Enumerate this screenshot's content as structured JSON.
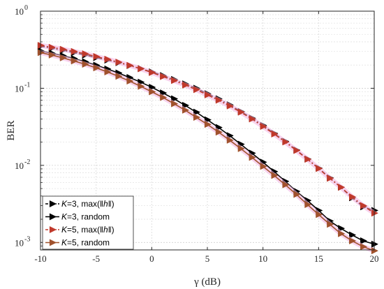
{
  "chart_data": {
    "type": "line",
    "xlabel": "γ (dB)",
    "ylabel": "BER",
    "xlim": [
      -10,
      20
    ],
    "ylim": [
      0.0008,
      1
    ],
    "yscale": "log",
    "grid": true,
    "legend_position": "bottom-left",
    "x_ticks": [
      "-10",
      "-5",
      "0",
      "5",
      "10",
      "15",
      "20"
    ],
    "y_ticks": [
      {
        "value": 1,
        "base": "10",
        "exp": "0"
      },
      {
        "value": 0.1,
        "base": "10",
        "exp": "-1"
      },
      {
        "value": 0.01,
        "base": "10",
        "exp": "-2"
      },
      {
        "value": 0.001,
        "base": "10",
        "exp": "-3"
      }
    ],
    "x": [
      -10,
      -9,
      -8,
      -7,
      -6,
      -5,
      -4,
      -3,
      -2,
      -1,
      0,
      1,
      2,
      3,
      4,
      5,
      6,
      7,
      8,
      9,
      10,
      11,
      12,
      13,
      14,
      15,
      16,
      17,
      18,
      19,
      20
    ],
    "series": [
      {
        "legend_italic": "K",
        "legend_text": "=3, max(‖",
        "legend_italic2": "h",
        "legend_text2": "‖)",
        "color": "#000000",
        "dash": "6,3,2,3",
        "values": [
          0.35,
          0.33,
          0.31,
          0.29,
          0.27,
          0.25,
          0.232,
          0.215,
          0.197,
          0.18,
          0.163,
          0.146,
          0.13,
          0.114,
          0.1,
          0.085,
          0.073,
          0.061,
          0.05,
          0.041,
          0.033,
          0.026,
          0.0205,
          0.0158,
          0.0121,
          0.0092,
          0.0069,
          0.0052,
          0.0038,
          0.0029,
          0.0026
        ]
      },
      {
        "legend_italic": "K",
        "legend_text": "=3, random",
        "color": "#000000",
        "dash": "",
        "values": [
          0.305,
          0.285,
          0.265,
          0.243,
          0.221,
          0.199,
          0.178,
          0.158,
          0.138,
          0.12,
          0.103,
          0.087,
          0.073,
          0.06,
          0.049,
          0.039,
          0.031,
          0.0243,
          0.0188,
          0.0144,
          0.011,
          0.0083,
          0.0062,
          0.0046,
          0.0035,
          0.0026,
          0.0019,
          0.00152,
          0.00125,
          0.00105,
          0.00095
        ]
      },
      {
        "legend_italic": "K",
        "legend_text": "=5, max(‖",
        "legend_italic2": "h",
        "legend_text2": "‖)",
        "color": "#c0392b",
        "dash": "6,3,2,3",
        "values": [
          0.36,
          0.34,
          0.32,
          0.3,
          0.28,
          0.258,
          0.238,
          0.218,
          0.198,
          0.179,
          0.16,
          0.142,
          0.126,
          0.11,
          0.096,
          0.082,
          0.07,
          0.059,
          0.049,
          0.04,
          0.032,
          0.0255,
          0.0201,
          0.0156,
          0.012,
          0.0091,
          0.0068,
          0.0052,
          0.0039,
          0.003,
          0.0024
        ]
      },
      {
        "legend_italic": "K",
        "legend_text": "=5, random",
        "color": "#a0522d",
        "dash": "",
        "values": [
          0.29,
          0.27,
          0.248,
          0.226,
          0.205,
          0.184,
          0.163,
          0.143,
          0.124,
          0.106,
          0.09,
          0.076,
          0.063,
          0.052,
          0.042,
          0.034,
          0.027,
          0.0212,
          0.0165,
          0.0127,
          0.0097,
          0.0074,
          0.0056,
          0.0042,
          0.0031,
          0.0023,
          0.00172,
          0.0013,
          0.00105,
          0.00088,
          0.00078
        ]
      }
    ]
  }
}
